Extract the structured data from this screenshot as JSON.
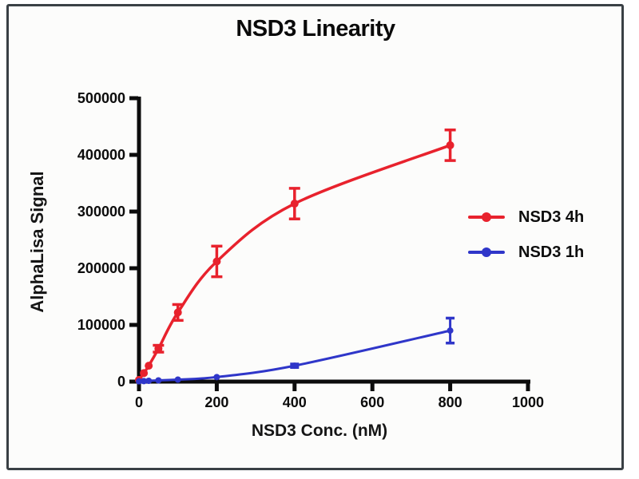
{
  "chart_data": {
    "type": "line",
    "title": "NSD3 Linearity",
    "xlabel": "NSD3 Conc. (nM)",
    "ylabel": "AlphaLisa Signal",
    "xlim": [
      0,
      1000
    ],
    "ylim": [
      0,
      500000
    ],
    "x_ticks": [
      0,
      200,
      400,
      600,
      800,
      1000
    ],
    "y_ticks": [
      0,
      100000,
      200000,
      300000,
      400000,
      500000
    ],
    "grid": false,
    "legend_position": "right-middle",
    "axis_color": "#0c0c0c",
    "series": [
      {
        "name": "NSD3 4h",
        "color": "#e8222d",
        "marker": "circle",
        "x": [
          0,
          12.5,
          25,
          50,
          100,
          200,
          400,
          800
        ],
        "y": [
          3000,
          15000,
          28000,
          58000,
          122000,
          212000,
          314000,
          417000
        ],
        "yerr": [
          0,
          0,
          0,
          6000,
          14000,
          27000,
          27000,
          27000
        ]
      },
      {
        "name": "NSD3 1h",
        "color": "#2f36c9",
        "marker": "circle",
        "x": [
          0,
          12.5,
          25,
          50,
          100,
          200,
          400,
          800
        ],
        "y": [
          500,
          900,
          1400,
          2200,
          3500,
          8000,
          28000,
          90000
        ],
        "yerr": [
          0,
          0,
          0,
          0,
          0,
          0,
          3000,
          22000
        ]
      }
    ]
  }
}
